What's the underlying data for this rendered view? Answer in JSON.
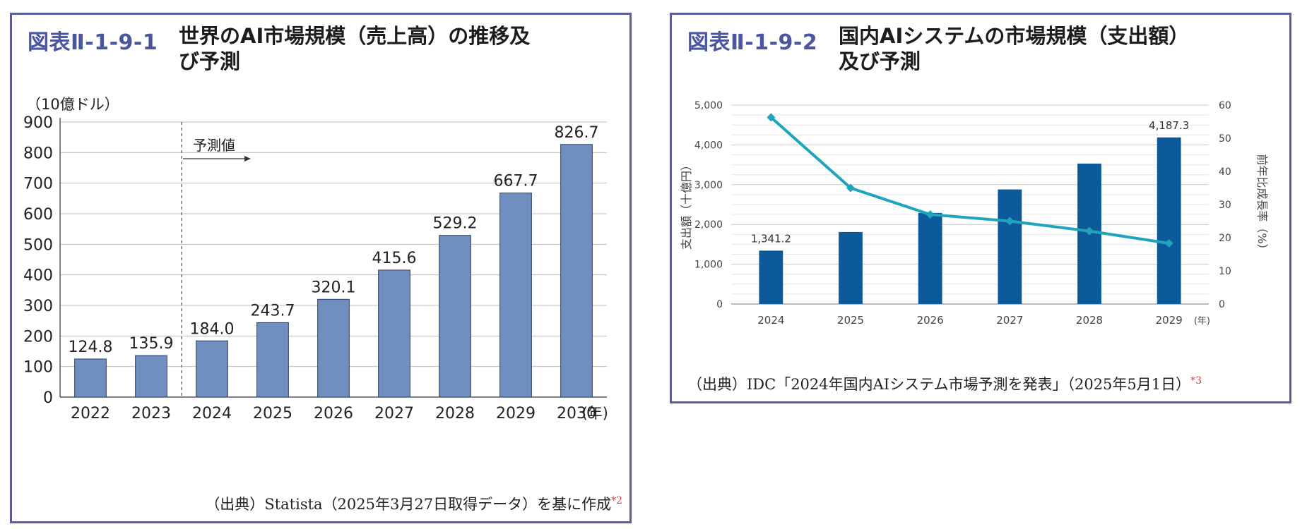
{
  "figures": [
    {
      "id": "図表Ⅱ-1-9-1",
      "title": "世界のAI市場規模（売上高）の推移及び予測",
      "title_line1": "世界のAI市場規模（売上高）の推移及",
      "title_line2": "び予測",
      "unit_label": "（10億ドル）",
      "forecast_label": "予測値",
      "source": "（出典）Statista（2025年3月27日取得データ）を基に作成",
      "source_note": "*2"
    },
    {
      "id": "図表Ⅱ-1-9-2",
      "title": "国内AIシステムの市場規模（支出額）及び予測",
      "title_line1": "国内AIシステムの市場規模（支出額）",
      "title_line2": "及び予測",
      "source": "（出典）IDC「2024年国内AIシステム市場予測を発表」（2025年5月1日）",
      "source_note": "*3"
    }
  ],
  "chart_data": [
    {
      "type": "bar",
      "categories": [
        "2022",
        "2023",
        "2024",
        "2025",
        "2026",
        "2027",
        "2028",
        "2029",
        "2030"
      ],
      "values": [
        124.8,
        135.9,
        184.0,
        243.7,
        320.1,
        415.6,
        529.2,
        667.7,
        826.7
      ],
      "value_labels": [
        "124.8",
        "135.9",
        "184.0",
        "243.7",
        "320.1",
        "415.6",
        "529.2",
        "667.7",
        "826.7"
      ],
      "y_ticks": [
        "0",
        "100",
        "200",
        "300",
        "400",
        "500",
        "600",
        "700",
        "800",
        "900"
      ],
      "ylim": [
        0,
        900
      ],
      "x_unit": "(年)",
      "forecast_start": "2024",
      "bar_color": "#6e8fc0",
      "grid": true
    },
    {
      "type": "bar",
      "categories": [
        "2024",
        "2025",
        "2026",
        "2027",
        "2028",
        "2029"
      ],
      "series": [
        {
          "type": "bar",
          "values": [
            1341.2,
            1810,
            2290,
            2880,
            3530,
            4187.3
          ],
          "color": "#0d5a9a"
        },
        {
          "type": "line",
          "axis": "right",
          "values": [
            56.3,
            35.0,
            27.0,
            25.0,
            22.0,
            18.3
          ],
          "color": "#1ea5bd"
        }
      ],
      "bar_labels": [
        {
          "index": 0,
          "text": "1,341.2"
        },
        {
          "index": 5,
          "text": "4,187.3"
        }
      ],
      "y_left_ticks": [
        "0",
        "1,000",
        "2,000",
        "3,000",
        "4,000",
        "5,000"
      ],
      "y_right_ticks": [
        "0",
        "10",
        "20",
        "30",
        "40",
        "50",
        "60"
      ],
      "ylim_left": [
        0,
        5000
      ],
      "ylim_right": [
        0,
        60
      ],
      "ylabel_left": "支出額（十億円）",
      "ylabel_right": "前年比成長率（%）",
      "x_unit": "(年)",
      "grid": true
    }
  ]
}
